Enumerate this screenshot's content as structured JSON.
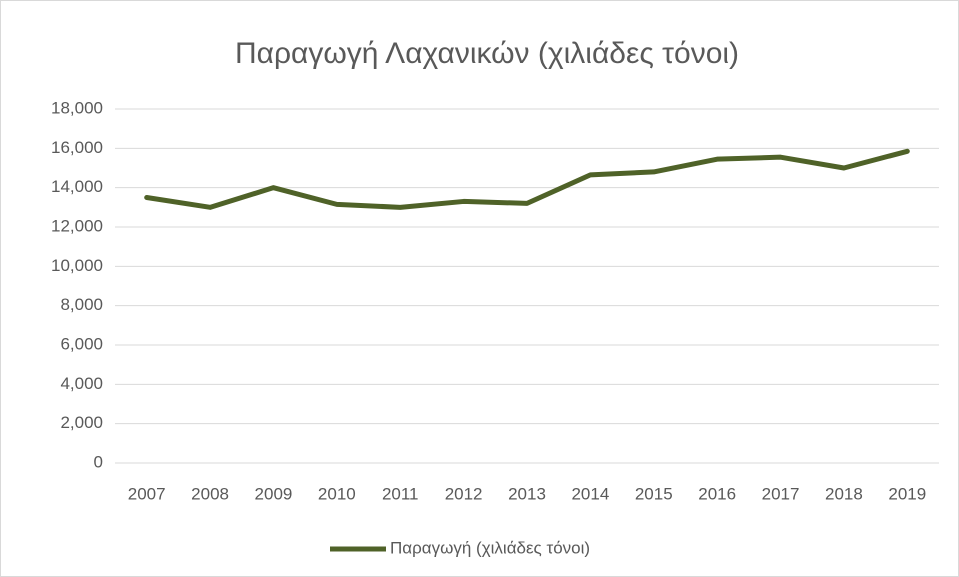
{
  "chart_data": {
    "type": "line",
    "title": "Παραγωγή Λαχανικών (χιλιάδες τόνοι)",
    "categories": [
      "2007",
      "2008",
      "2009",
      "2010",
      "2011",
      "2012",
      "2013",
      "2014",
      "2015",
      "2016",
      "2017",
      "2018",
      "2019"
    ],
    "series": [
      {
        "name": "Παραγωγή (χιλιάδες τόνοι)",
        "color": "#4f6228",
        "values": [
          13500,
          13000,
          14000,
          13150,
          13000,
          13300,
          13200,
          14650,
          14800,
          15450,
          15550,
          15000,
          15850
        ]
      }
    ],
    "ylim": [
      0,
      18000
    ],
    "yticks": [
      0,
      {
        "value": 2000,
        "label": "2,000"
      },
      {
        "value": 4000,
        "label": "4,000"
      },
      {
        "value": 6000,
        "label": "6,000"
      },
      {
        "value": 8000,
        "label": "8,000"
      },
      {
        "value": 10000,
        "label": "10,000"
      },
      {
        "value": 12000,
        "label": "12,000"
      },
      {
        "value": 14000,
        "label": "14,000"
      },
      {
        "value": 16000,
        "label": "16,000"
      },
      {
        "value": 18000,
        "label": "18,000"
      }
    ],
    "grid": true,
    "legend": "bottom"
  }
}
